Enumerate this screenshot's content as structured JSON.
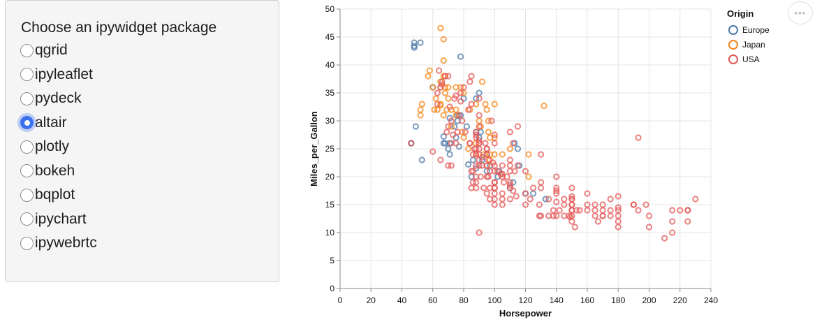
{
  "widget": {
    "title": "Choose an ipywidget package",
    "options": [
      {
        "label": "qgrid",
        "checked": false
      },
      {
        "label": "ipyleaflet",
        "checked": false
      },
      {
        "label": "pydeck",
        "checked": false
      },
      {
        "label": "altair",
        "checked": true
      },
      {
        "label": "plotly",
        "checked": false
      },
      {
        "label": "bokeh",
        "checked": false
      },
      {
        "label": "bqplot",
        "checked": false
      },
      {
        "label": "ipychart",
        "checked": false
      },
      {
        "label": "ipywebrtc",
        "checked": false
      }
    ]
  },
  "actions": {
    "more_icon": "ellipsis-icon",
    "more_glyph": "•••"
  },
  "colors": {
    "Europe": "#4c78a8",
    "Japan": "#f58518",
    "USA": "#e45756",
    "accent": "#3b71ee"
  },
  "chart_data": {
    "type": "scatter",
    "title": "",
    "xlabel": "Horsepower",
    "ylabel": "Miles_per_Gallon",
    "xlim": [
      0,
      240
    ],
    "ylim": [
      0,
      50
    ],
    "xticks": [
      0,
      20,
      40,
      60,
      80,
      100,
      120,
      140,
      160,
      180,
      200,
      220,
      240
    ],
    "yticks": [
      0,
      5,
      10,
      15,
      20,
      25,
      30,
      35,
      40,
      45,
      50
    ],
    "grid": true,
    "legend": {
      "title": "Origin",
      "placement": "top-right"
    },
    "series": [
      {
        "name": "Europe",
        "points": [
          [
            46,
            26
          ],
          [
            48,
            44
          ],
          [
            48,
            43.4
          ],
          [
            48,
            43.1
          ],
          [
            52,
            44
          ],
          [
            53,
            23
          ],
          [
            46,
            26
          ],
          [
            49,
            29
          ],
          [
            60,
            36
          ],
          [
            67,
            26
          ],
          [
            68,
            26
          ],
          [
            70,
            25
          ],
          [
            71,
            26
          ],
          [
            74,
            29
          ],
          [
            75,
            27
          ],
          [
            76,
            31
          ],
          [
            78,
            41.5
          ],
          [
            78,
            31
          ],
          [
            80,
            34
          ],
          [
            82,
            29
          ],
          [
            85,
            20
          ],
          [
            86,
            23
          ],
          [
            88,
            28
          ],
          [
            90,
            35
          ],
          [
            90,
            27
          ],
          [
            91,
            28
          ],
          [
            95,
            24
          ],
          [
            95,
            21
          ],
          [
            97,
            22
          ],
          [
            102,
            20
          ],
          [
            103,
            21
          ],
          [
            110,
            18
          ],
          [
            112,
            19
          ],
          [
            113,
            26
          ],
          [
            115,
            25
          ],
          [
            116,
            22
          ],
          [
            120,
            17
          ],
          [
            125,
            17
          ],
          [
            133,
            16
          ],
          [
            71,
            24
          ],
          [
            76,
            30
          ],
          [
            77,
            25.4
          ],
          [
            88,
            21.5
          ],
          [
            83,
            22.2
          ],
          [
            88,
            34
          ],
          [
            92,
            23
          ],
          [
            67,
            27.2
          ],
          [
            71,
            30.5
          ]
        ]
      },
      {
        "name": "Japan",
        "points": [
          [
            65,
            46.6
          ],
          [
            67,
            44.6
          ],
          [
            68,
            38
          ],
          [
            58,
            39
          ],
          [
            60,
            36
          ],
          [
            65,
            37
          ],
          [
            67,
            40.8
          ],
          [
            65,
            32.8
          ],
          [
            52,
            32
          ],
          [
            52,
            31
          ],
          [
            61,
            32
          ],
          [
            63,
            32
          ],
          [
            65,
            36
          ],
          [
            67,
            38
          ],
          [
            68,
            35
          ],
          [
            70,
            34
          ],
          [
            72,
            32
          ],
          [
            75,
            32
          ],
          [
            75,
            31
          ],
          [
            78,
            36
          ],
          [
            80,
            35
          ],
          [
            84,
            32
          ],
          [
            88,
            33
          ],
          [
            92,
            37
          ],
          [
            94,
            33
          ],
          [
            95,
            32
          ],
          [
            97,
            24
          ],
          [
            97,
            27
          ],
          [
            100,
            33
          ],
          [
            96,
            28
          ],
          [
            88,
            26
          ],
          [
            90,
            30
          ],
          [
            93,
            24
          ],
          [
            95,
            22
          ],
          [
            97,
            23
          ],
          [
            100,
            24
          ],
          [
            105,
            24
          ],
          [
            110,
            25
          ],
          [
            122,
            24
          ],
          [
            122,
            20
          ],
          [
            132,
            32.7
          ],
          [
            65,
            33
          ],
          [
            68,
            36
          ],
          [
            70,
            36
          ],
          [
            69,
            32
          ],
          [
            75,
            36
          ],
          [
            79,
            28
          ],
          [
            53,
            33
          ],
          [
            57,
            38
          ],
          [
            62,
            34
          ],
          [
            67,
            31
          ],
          [
            72,
            29
          ],
          [
            80,
            27
          ],
          [
            83,
            25
          ],
          [
            88,
            24
          ],
          [
            91,
            29
          ],
          [
            96,
            30
          ],
          [
            100,
            27
          ]
        ]
      },
      {
        "name": "USA",
        "points": [
          [
            130,
            18
          ],
          [
            165,
            15
          ],
          [
            150,
            18
          ],
          [
            150,
            16
          ],
          [
            140,
            17
          ],
          [
            198,
            15
          ],
          [
            220,
            14
          ],
          [
            215,
            14
          ],
          [
            225,
            14
          ],
          [
            190,
            15
          ],
          [
            170,
            15
          ],
          [
            160,
            14
          ],
          [
            150,
            15
          ],
          [
            225,
            14
          ],
          [
            95,
            24
          ],
          [
            95,
            22
          ],
          [
            97,
            18
          ],
          [
            85,
            21
          ],
          [
            88,
            27
          ],
          [
            46,
            26
          ],
          [
            87,
            25
          ],
          [
            90,
            24
          ],
          [
            95,
            25
          ],
          [
            113,
            21
          ],
          [
            90,
            10
          ],
          [
            215,
            10
          ],
          [
            200,
            11
          ],
          [
            210,
            9
          ],
          [
            193,
            27
          ],
          [
            88,
            28
          ],
          [
            90,
            25
          ],
          [
            95,
            25
          ],
          [
            100,
            19
          ],
          [
            105,
            16
          ],
          [
            100,
            17
          ],
          [
            88,
            19
          ],
          [
            100,
            18
          ],
          [
            165,
            14
          ],
          [
            175,
            14
          ],
          [
            153,
            14
          ],
          [
            150,
            14
          ],
          [
            180,
            12
          ],
          [
            170,
            13
          ],
          [
            175,
            13
          ],
          [
            110,
            18
          ],
          [
            72,
            22
          ],
          [
            100,
            19
          ],
          [
            88,
            18
          ],
          [
            86,
            21
          ],
          [
            90,
            26
          ],
          [
            70,
            22
          ],
          [
            76,
            28
          ],
          [
            65,
            23
          ],
          [
            69,
            28
          ],
          [
            60,
            24.5
          ],
          [
            86,
            19
          ],
          [
            72,
            26
          ],
          [
            97,
            21
          ],
          [
            90,
            26
          ],
          [
            92,
            22
          ],
          [
            100,
            21
          ],
          [
            88,
            24
          ],
          [
            90,
            26.5
          ],
          [
            110,
            18.5
          ],
          [
            115,
            22
          ],
          [
            105,
            20.5
          ],
          [
            145,
            16
          ],
          [
            140,
            18
          ],
          [
            105,
            15
          ],
          [
            100,
            19
          ],
          [
            110,
            22
          ],
          [
            100,
            26
          ],
          [
            88,
            25
          ],
          [
            85,
            18
          ],
          [
            150,
            16.5
          ],
          [
            150,
            15
          ],
          [
            142,
            14
          ],
          [
            150,
            13
          ],
          [
            167,
            12
          ],
          [
            170,
            13
          ],
          [
            180,
            14.5
          ],
          [
            193,
            14
          ],
          [
            149,
            12.8
          ],
          [
            140,
            15.5
          ],
          [
            138,
            13
          ],
          [
            129,
            13
          ],
          [
            145,
            13
          ],
          [
            152,
            11
          ],
          [
            125,
            18
          ],
          [
            150,
            16
          ],
          [
            140,
            20
          ],
          [
            135,
            13
          ],
          [
            110,
            19
          ],
          [
            105,
            20
          ],
          [
            140,
            17.5
          ],
          [
            120,
            17
          ],
          [
            100,
            18
          ],
          [
            130,
            19
          ],
          [
            90,
            22
          ],
          [
            90,
            29
          ],
          [
            78,
            33.5
          ],
          [
            80,
            36
          ],
          [
            75,
            34.5
          ],
          [
            65,
            36
          ],
          [
            90,
            34
          ],
          [
            110,
            28
          ],
          [
            115,
            29
          ],
          [
            130,
            24
          ],
          [
            85,
            33
          ],
          [
            83,
            32
          ],
          [
            78,
            35
          ],
          [
            68,
            38
          ],
          [
            63,
            33
          ],
          [
            70,
            38
          ],
          [
            84,
            37
          ],
          [
            85,
            38
          ],
          [
            90,
            31
          ],
          [
            98,
            30
          ],
          [
            120,
            21
          ],
          [
            112,
            26
          ],
          [
            180,
            16.5
          ],
          [
            190,
            15
          ],
          [
            225,
            12
          ],
          [
            200,
            13
          ],
          [
            180,
            11
          ],
          [
            160,
            17
          ],
          [
            150,
            14
          ],
          [
            230,
            16
          ],
          [
            215,
            12
          ],
          [
            180,
            13
          ],
          [
            105,
            17
          ],
          [
            95,
            20
          ],
          [
            100,
            22
          ],
          [
            110,
            23
          ],
          [
            100,
            27.5
          ],
          [
            70,
            29
          ],
          [
            75,
            26
          ],
          [
            84,
            26
          ],
          [
            88,
            27.5
          ],
          [
            90,
            23
          ],
          [
            88,
            20
          ],
          [
            92,
            23.5
          ],
          [
            96,
            20
          ],
          [
            105,
            22
          ],
          [
            110,
            21
          ],
          [
            108,
            20
          ],
          [
            100,
            16
          ],
          [
            100,
            15
          ],
          [
            110,
            16
          ],
          [
            120,
            15
          ],
          [
            123,
            16
          ],
          [
            129,
            15
          ],
          [
            130,
            13
          ],
          [
            135,
            16
          ],
          [
            138,
            14
          ],
          [
            140,
            13
          ],
          [
            145,
            15
          ],
          [
            148,
            13
          ],
          [
            150,
            12
          ],
          [
            155,
            14
          ],
          [
            160,
            15
          ],
          [
            165,
            13
          ],
          [
            170,
            14
          ],
          [
            175,
            16
          ],
          [
            180,
            14
          ],
          [
            63,
            35
          ],
          [
            66,
            37
          ],
          [
            72,
            30
          ],
          [
            74,
            34
          ],
          [
            77,
            31
          ],
          [
            79,
            30
          ],
          [
            81,
            28
          ],
          [
            84,
            26
          ],
          [
            86,
            24
          ],
          [
            88,
            22
          ],
          [
            91,
            20
          ],
          [
            93,
            18
          ],
          [
            95,
            17
          ],
          [
            97,
            16
          ],
          [
            64,
            39
          ],
          [
            66,
            36.5
          ],
          [
            71,
            32.5
          ],
          [
            73,
            27.5
          ],
          [
            94,
            26
          ],
          [
            96,
            23
          ],
          [
            99,
            22.5
          ],
          [
            102,
            21
          ],
          [
            104,
            20.5
          ],
          [
            106,
            19
          ],
          [
            112,
            17.5
          ],
          [
            114,
            16.5
          ]
        ]
      }
    ]
  }
}
